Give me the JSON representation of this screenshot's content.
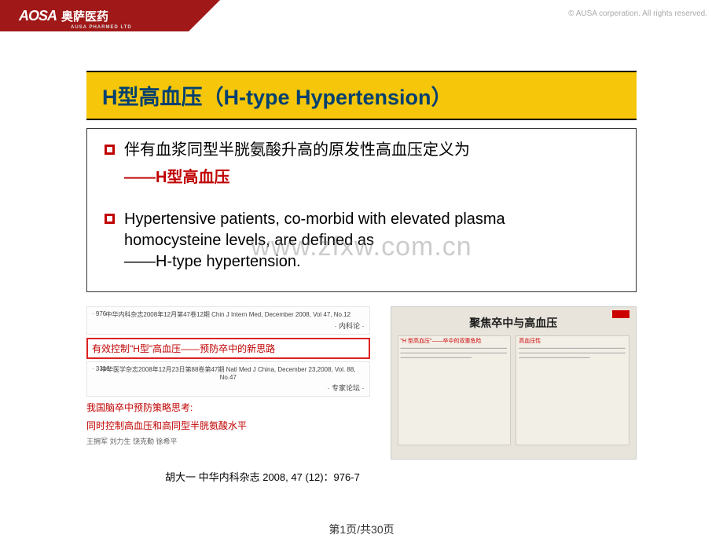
{
  "header": {
    "logo_en": "AOSA",
    "logo_cn": "奥萨医药",
    "logo_sub": "AUSA PHARMED LTD",
    "copyright": "© AUSA corperation. All rights reserved."
  },
  "title": "H型高血压（H-type Hypertension）",
  "bullets": {
    "cn_line": "伴有血浆同型半胱氨酸升高的原发性高血压定义为",
    "cn_emph": "——H型高血压",
    "en_line1": "Hypertensive patients, co-morbid with elevated plasma",
    "en_line2": "homocysteine levels, are defined as",
    "en_line3": "——H-type hypertension."
  },
  "references": {
    "clip1_page": "· 976 ·",
    "clip1_journal": "中华内科杂志2008年12月第47卷12期  Chin J Intern Med, December 2008, Vol 47, No.12",
    "clip1_cat": "· 内科论 ·",
    "redbox_text": "有效控制\"H型\"高血压——预防卒中的新思路",
    "clip2_page": "· 3316 ·",
    "clip2_journal": "中华医学杂志2008年12月23日第88卷第47期  Natl Med J China, December 23,2008, Vol. 88, No.47",
    "clip2_cat": "· 专家论坛 ·",
    "article_cn_l1": "我国脑卒中预防策略思考:",
    "article_cn_l2": "同时控制高血压和高同型半胱氨酸水平",
    "authors": "王拥军  刘力生  饶克勤  徐希平",
    "news_headline": "聚焦卒中与高血压",
    "news_sub1": "\"H 型高血压\"——卒中的双重危险",
    "news_sub2": "高血压性"
  },
  "citation": "胡大一    中华内科杂志 2008, 47 (12)：976-7",
  "pager": "第1页/共30页",
  "watermark": "www.zfxw.com.cn"
}
